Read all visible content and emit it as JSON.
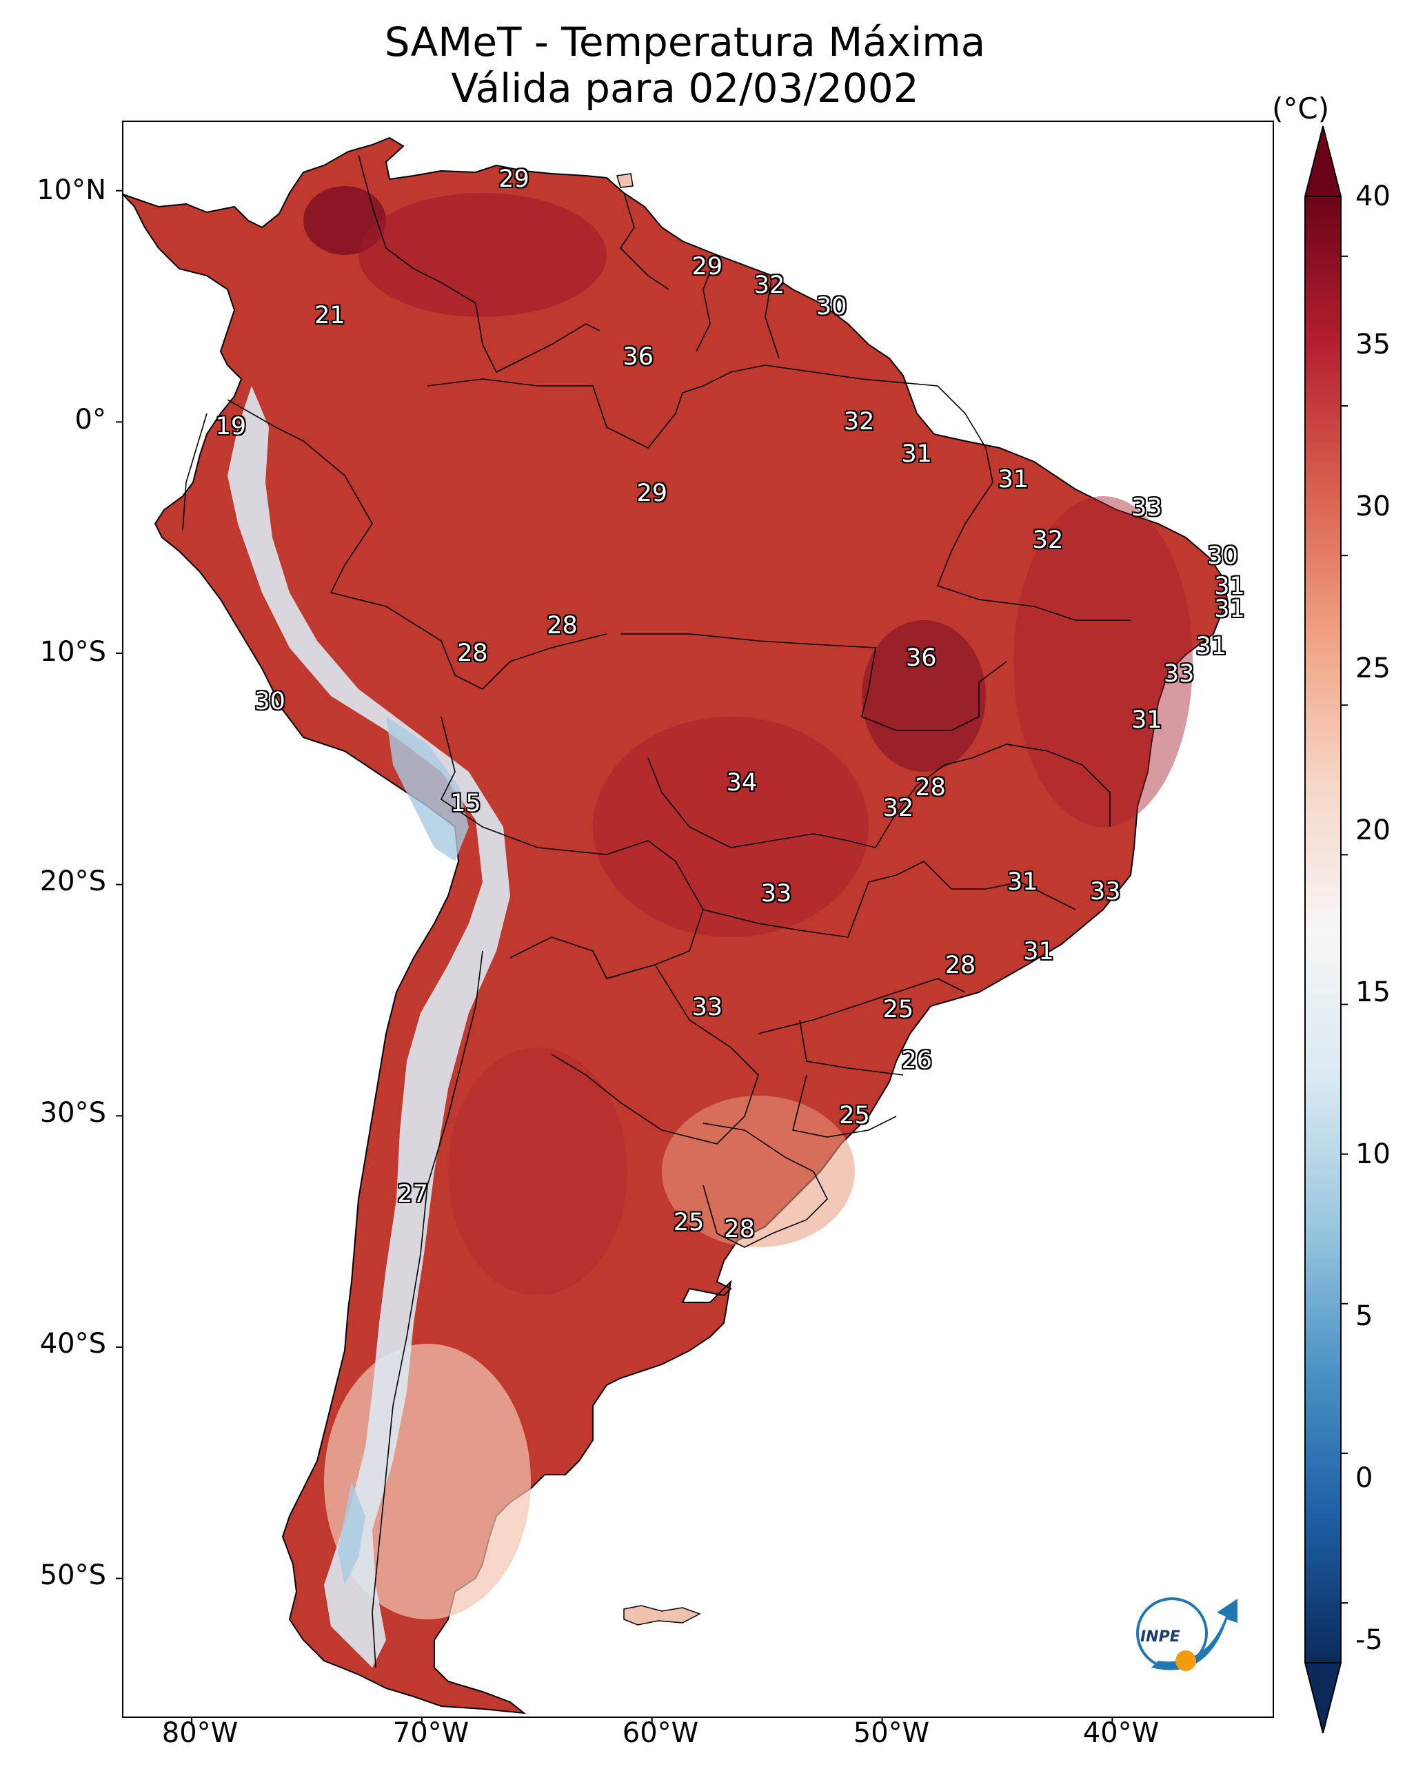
{
  "title": {
    "line1": "SAMeT - Temperatura Máxima",
    "line2": "Válida para 02/03/2002"
  },
  "map": {
    "lat_labels": [
      "10°N",
      "0°",
      "10°S",
      "20°S",
      "30°S",
      "40°S",
      "50°S"
    ],
    "lon_labels": [
      "80°W",
      "70°W",
      "60°W",
      "50°W",
      "40°W"
    ],
    "extent": {
      "lon_min": -83,
      "lon_max": -33,
      "lat_min": -56,
      "lat_max": 13
    }
  },
  "colorbar": {
    "unit": "(°C)",
    "tick_labels": [
      "40",
      "35",
      "30",
      "25",
      "20",
      "15",
      "10",
      "5",
      "0",
      "-5"
    ],
    "min": -7,
    "max": 42,
    "colors": [
      "#0b2a5b",
      "#1d5fa5",
      "#4b93c5",
      "#9cc8e0",
      "#dbeaf2",
      "#f7f6f6",
      "#f6d6c6",
      "#f0a283",
      "#d9604f",
      "#b41f2f",
      "#6b0318"
    ]
  },
  "points": [
    {
      "label": "29",
      "lon": -66.0,
      "lat": 10.5
    },
    {
      "label": "29",
      "lon": -57.6,
      "lat": 6.7
    },
    {
      "label": "32",
      "lon": -54.9,
      "lat": 5.9
    },
    {
      "label": "30",
      "lon": -52.2,
      "lat": 5.0
    },
    {
      "label": "21",
      "lon": -74.0,
      "lat": 4.6
    },
    {
      "label": "36",
      "lon": -60.6,
      "lat": 2.8
    },
    {
      "label": "19",
      "lon": -78.3,
      "lat": -0.2
    },
    {
      "label": "32",
      "lon": -51.0,
      "lat": 0.0
    },
    {
      "label": "31",
      "lon": -48.5,
      "lat": -1.4
    },
    {
      "label": "31",
      "lon": -44.3,
      "lat": -2.5
    },
    {
      "label": "29",
      "lon": -60.0,
      "lat": -3.1
    },
    {
      "label": "33",
      "lon": -38.5,
      "lat": -3.7
    },
    {
      "label": "32",
      "lon": -42.8,
      "lat": -5.1
    },
    {
      "label": "30",
      "lon": -35.2,
      "lat": -5.8
    },
    {
      "label": "31",
      "lon": -34.9,
      "lat": -7.1
    },
    {
      "label": "31",
      "lon": -34.9,
      "lat": -8.1
    },
    {
      "label": "28",
      "lon": -63.9,
      "lat": -8.8
    },
    {
      "label": "31",
      "lon": -35.7,
      "lat": -9.7
    },
    {
      "label": "28",
      "lon": -67.8,
      "lat": -10.0
    },
    {
      "label": "36",
      "lon": -48.3,
      "lat": -10.2
    },
    {
      "label": "33",
      "lon": -37.1,
      "lat": -10.9
    },
    {
      "label": "30",
      "lon": -76.6,
      "lat": -12.1
    },
    {
      "label": "31",
      "lon": -38.5,
      "lat": -12.9
    },
    {
      "label": "34",
      "lon": -56.1,
      "lat": -15.6
    },
    {
      "label": "28",
      "lon": -47.9,
      "lat": -15.8
    },
    {
      "label": "15",
      "lon": -68.1,
      "lat": -16.5
    },
    {
      "label": "32",
      "lon": -49.3,
      "lat": -16.7
    },
    {
      "label": "31",
      "lon": -43.9,
      "lat": -19.9
    },
    {
      "label": "33",
      "lon": -40.3,
      "lat": -20.3
    },
    {
      "label": "33",
      "lon": -54.6,
      "lat": -20.4
    },
    {
      "label": "31",
      "lon": -43.2,
      "lat": -22.9
    },
    {
      "label": "28",
      "lon": -46.6,
      "lat": -23.5
    },
    {
      "label": "33",
      "lon": -57.6,
      "lat": -25.3
    },
    {
      "label": "25",
      "lon": -49.3,
      "lat": -25.4
    },
    {
      "label": "26",
      "lon": -48.5,
      "lat": -27.6
    },
    {
      "label": "25",
      "lon": -51.2,
      "lat": -30.0
    },
    {
      "label": "27",
      "lon": -70.4,
      "lat": -33.4
    },
    {
      "label": "25",
      "lon": -58.4,
      "lat": -34.6
    },
    {
      "label": "28",
      "lon": -56.2,
      "lat": -34.9
    }
  ]
}
